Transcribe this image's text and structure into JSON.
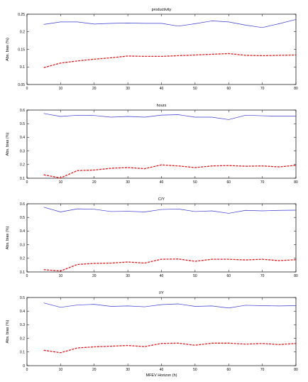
{
  "chart_data": [
    {
      "type": "line",
      "title": "productivity",
      "ylabel": "Abs. bias (%)",
      "xlabel": "",
      "xlim": [
        0,
        80
      ],
      "ylim": [
        0.05,
        0.25
      ],
      "xticks": [
        "0",
        "10",
        "20",
        "30",
        "40",
        "50",
        "60",
        "70",
        "80"
      ],
      "yticks": [
        "0.05",
        "0.1",
        "0.15",
        "0.2",
        "0.25"
      ],
      "grid": false,
      "x": [
        5,
        10,
        15,
        20,
        25,
        30,
        35,
        40,
        45,
        50,
        55,
        60,
        65,
        70,
        75,
        80
      ],
      "series": [
        {
          "style": "solid",
          "color": "#3a3ad0",
          "values": [
            0.221,
            0.228,
            0.228,
            0.222,
            0.224,
            0.225,
            0.224,
            0.224,
            0.216,
            0.223,
            0.231,
            0.228,
            0.219,
            0.212,
            0.223,
            0.235
          ]
        },
        {
          "style": "dashed",
          "color": "#e8151b",
          "values": [
            0.098,
            0.111,
            0.117,
            0.122,
            0.126,
            0.131,
            0.13,
            0.13,
            0.132,
            0.134,
            0.136,
            0.138,
            0.133,
            0.132,
            0.133,
            0.134
          ]
        }
      ]
    },
    {
      "type": "line",
      "title": "hours",
      "ylabel": "Abs. bias (%)",
      "xlabel": "",
      "xlim": [
        0,
        80
      ],
      "ylim": [
        0.1,
        0.6
      ],
      "xticks": [
        "0",
        "10",
        "20",
        "30",
        "40",
        "50",
        "60",
        "70",
        "80"
      ],
      "yticks": [
        "0.1",
        "0.2",
        "0.3",
        "0.4",
        "0.5",
        "0.6"
      ],
      "grid": false,
      "x": [
        5,
        10,
        15,
        20,
        25,
        30,
        35,
        40,
        45,
        50,
        55,
        60,
        65,
        70,
        75,
        80
      ],
      "series": [
        {
          "style": "solid",
          "color": "#3a3ad0",
          "values": [
            0.575,
            0.553,
            0.562,
            0.56,
            0.548,
            0.553,
            0.548,
            0.563,
            0.566,
            0.548,
            0.548,
            0.53,
            0.562,
            0.558,
            0.555,
            0.555
          ]
        },
        {
          "style": "dashed",
          "color": "#e8151b",
          "values": [
            0.125,
            0.102,
            0.156,
            0.16,
            0.173,
            0.178,
            0.17,
            0.198,
            0.19,
            0.178,
            0.19,
            0.193,
            0.188,
            0.19,
            0.183,
            0.195
          ]
        }
      ]
    },
    {
      "type": "line",
      "title": "C/Y",
      "ylabel": "Abs. bias (%)",
      "xlabel": "",
      "xlim": [
        0,
        80
      ],
      "ylim": [
        0.1,
        0.6
      ],
      "xticks": [
        "0",
        "10",
        "20",
        "30",
        "40",
        "50",
        "60",
        "70",
        "80"
      ],
      "yticks": [
        "0.1",
        "0.2",
        "0.3",
        "0.4",
        "0.5",
        "0.6"
      ],
      "grid": false,
      "x": [
        5,
        10,
        15,
        20,
        25,
        30,
        35,
        40,
        45,
        50,
        55,
        60,
        65,
        70,
        75,
        80
      ],
      "series": [
        {
          "style": "solid",
          "color": "#3a3ad0",
          "values": [
            0.575,
            0.54,
            0.563,
            0.56,
            0.543,
            0.545,
            0.54,
            0.558,
            0.562,
            0.543,
            0.548,
            0.53,
            0.552,
            0.548,
            0.552,
            0.553
          ]
        },
        {
          "style": "dashed",
          "color": "#e8151b",
          "values": [
            0.117,
            0.107,
            0.155,
            0.163,
            0.165,
            0.173,
            0.165,
            0.193,
            0.195,
            0.178,
            0.193,
            0.193,
            0.188,
            0.193,
            0.183,
            0.19
          ]
        }
      ]
    },
    {
      "type": "line",
      "title": "I/Y",
      "ylabel": "Abs. bias (%)",
      "xlabel": "MFEV Horizon (h)",
      "xlim": [
        0,
        80
      ],
      "ylim": [
        0,
        0.5
      ],
      "xticks": [
        "0",
        "10",
        "20",
        "30",
        "40",
        "50",
        "60",
        "70",
        "80"
      ],
      "yticks": [
        "0",
        "0.1",
        "0.2",
        "0.3",
        "0.4",
        "0.5"
      ],
      "grid": false,
      "x": [
        5,
        10,
        15,
        20,
        25,
        30,
        35,
        40,
        45,
        50,
        55,
        60,
        65,
        70,
        75,
        80
      ],
      "series": [
        {
          "style": "solid",
          "color": "#3a3ad0",
          "values": [
            0.46,
            0.428,
            0.445,
            0.45,
            0.435,
            0.438,
            0.432,
            0.448,
            0.453,
            0.435,
            0.438,
            0.423,
            0.443,
            0.44,
            0.438,
            0.44
          ]
        },
        {
          "style": "dashed",
          "color": "#e8151b",
          "values": [
            0.113,
            0.095,
            0.13,
            0.138,
            0.143,
            0.148,
            0.14,
            0.163,
            0.165,
            0.15,
            0.165,
            0.165,
            0.158,
            0.163,
            0.155,
            0.163
          ]
        }
      ]
    }
  ]
}
